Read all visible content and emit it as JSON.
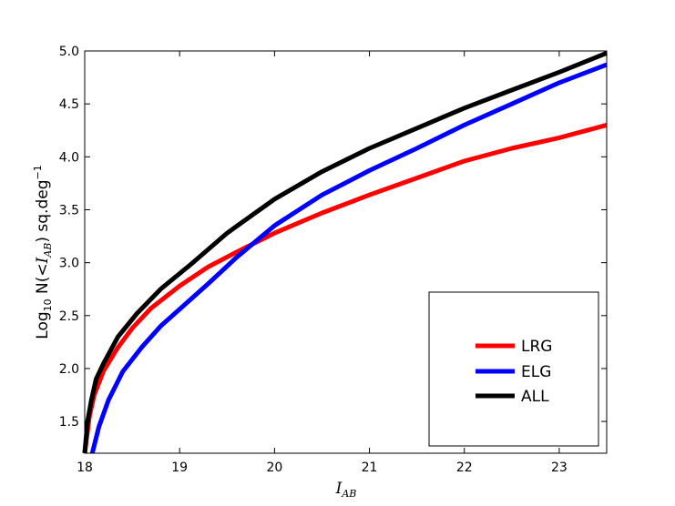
{
  "chart_data": {
    "type": "line",
    "title": "",
    "xlabel": "I_AB",
    "ylabel": "Log10 N(<I_AB) sq.deg^-1",
    "xlim": [
      18,
      23.5
    ],
    "ylim": [
      1.2,
      5.0
    ],
    "xticks": [
      18,
      19,
      20,
      21,
      22,
      23
    ],
    "yticks": [
      1.5,
      2.0,
      2.5,
      3.0,
      3.5,
      4.0,
      4.5,
      5.0
    ],
    "xtick_labels": [
      "18",
      "19",
      "20",
      "21",
      "22",
      "23"
    ],
    "ytick_labels": [
      "1.5",
      "2.0",
      "2.5",
      "3.0",
      "3.5",
      "4.0",
      "4.5",
      "5.0"
    ],
    "grid": false,
    "legend_position": "lower-right",
    "series": [
      {
        "name": "LRG",
        "color": "#ff0000",
        "x": [
          18.0,
          18.05,
          18.1,
          18.2,
          18.35,
          18.5,
          18.7,
          19.0,
          19.3,
          19.6,
          20.0,
          20.5,
          21.0,
          21.5,
          22.0,
          22.5,
          23.0,
          23.5
        ],
        "y": [
          1.2,
          1.55,
          1.75,
          1.98,
          2.2,
          2.38,
          2.57,
          2.78,
          2.96,
          3.1,
          3.28,
          3.47,
          3.64,
          3.8,
          3.96,
          4.08,
          4.18,
          4.3
        ]
      },
      {
        "name": "ELG",
        "color": "#0000ff",
        "x": [
          18.08,
          18.15,
          18.25,
          18.4,
          18.6,
          18.8,
          19.0,
          19.3,
          19.6,
          20.0,
          20.5,
          21.0,
          21.5,
          22.0,
          22.5,
          23.0,
          23.5
        ],
        "y": [
          1.2,
          1.45,
          1.7,
          1.97,
          2.2,
          2.4,
          2.56,
          2.8,
          3.05,
          3.35,
          3.64,
          3.87,
          4.08,
          4.3,
          4.5,
          4.7,
          4.87
        ]
      },
      {
        "name": "ALL",
        "color": "#000000",
        "x": [
          18.0,
          18.03,
          18.07,
          18.12,
          18.2,
          18.35,
          18.55,
          18.8,
          19.1,
          19.5,
          20.0,
          20.5,
          21.0,
          21.5,
          22.0,
          22.5,
          23.0,
          23.5
        ],
        "y": [
          1.2,
          1.5,
          1.7,
          1.9,
          2.05,
          2.3,
          2.52,
          2.75,
          2.97,
          3.28,
          3.6,
          3.86,
          4.08,
          4.27,
          4.46,
          4.63,
          4.8,
          4.98
        ]
      }
    ]
  },
  "legend": {
    "items": [
      {
        "label": "LRG",
        "color": "#ff0000"
      },
      {
        "label": "ELG",
        "color": "#0000ff"
      },
      {
        "label": "ALL",
        "color": "#000000"
      }
    ]
  }
}
